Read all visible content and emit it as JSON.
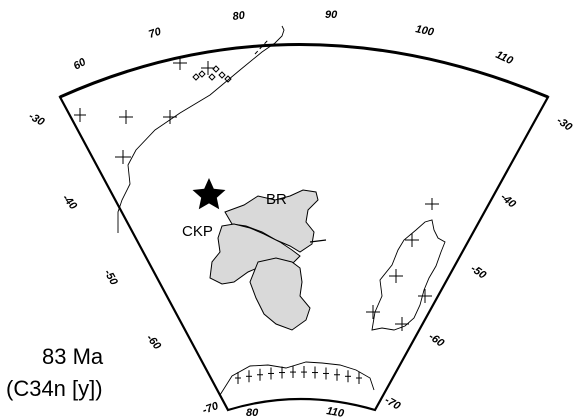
{
  "map": {
    "top_longitude_labels": [
      "60",
      "70",
      "80",
      "90",
      "100",
      "110"
    ],
    "left_latitude_labels": [
      "-30",
      "-40",
      "-50",
      "-60",
      "-70"
    ],
    "right_latitude_labels": [
      "-30",
      "-40",
      "-50",
      "-60",
      "-70"
    ],
    "bottom_longitude_labels": [
      "80",
      "110"
    ],
    "places": {
      "br": "BR",
      "ckp": "CKP"
    },
    "age_label": "83 Ma",
    "chron_label": "(C34n [y])",
    "star_icon": "star-icon",
    "fill_color": "#d9d9d9"
  }
}
